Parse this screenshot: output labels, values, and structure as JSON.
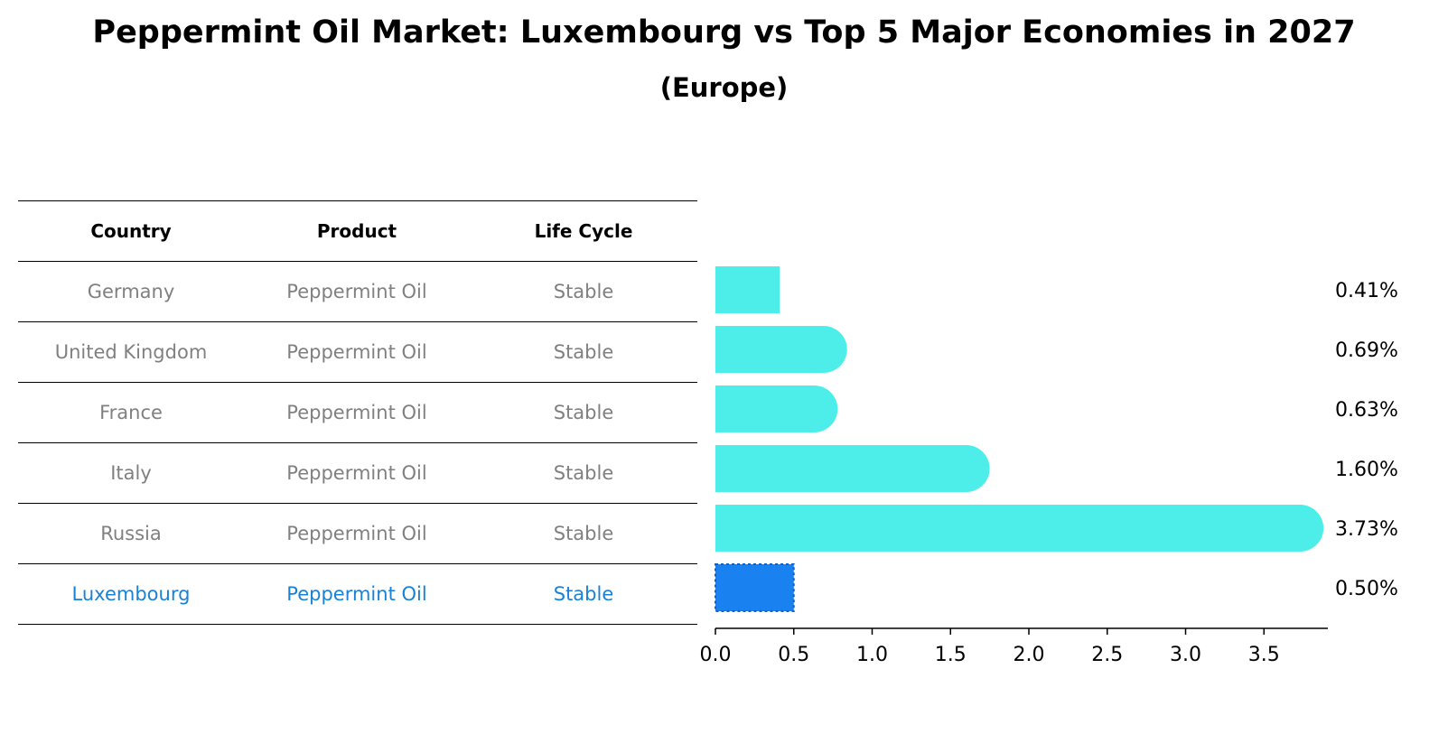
{
  "title": "Peppermint Oil Market: Luxembourg vs Top 5 Major Economies in 2027",
  "subtitle": "(Europe)",
  "table": {
    "headers": [
      "Country",
      "Product",
      "Life Cycle"
    ],
    "rows": [
      [
        "Germany",
        "Peppermint Oil",
        "Stable"
      ],
      [
        "United Kingdom",
        "Peppermint Oil",
        "Stable"
      ],
      [
        "France",
        "Peppermint Oil",
        "Stable"
      ],
      [
        "Italy",
        "Peppermint Oil",
        "Stable"
      ],
      [
        "Russia",
        "Peppermint Oil",
        "Stable"
      ],
      [
        "Luxembourg",
        "Peppermint Oil",
        "Stable"
      ]
    ],
    "highlight_row": 5
  },
  "colors": {
    "bar": "#4deeea",
    "highlight": "#1a82f0",
    "table_text": "#808080",
    "highlight_text": "#1a82d6"
  },
  "chart_data": {
    "type": "bar",
    "orientation": "horizontal",
    "categories": [
      "Germany",
      "United Kingdom",
      "France",
      "Italy",
      "Russia",
      "Luxembourg"
    ],
    "values": [
      0.41,
      0.69,
      0.63,
      1.6,
      3.73,
      0.5
    ],
    "value_labels": [
      "0.41%",
      "0.69%",
      "0.63%",
      "1.60%",
      "3.73%",
      "0.50%"
    ],
    "highlight_index": 5,
    "xlim": [
      0,
      3.9
    ],
    "xticks": [
      0.0,
      0.5,
      1.0,
      1.5,
      2.0,
      2.5,
      3.0,
      3.5
    ],
    "xtick_labels": [
      "0.0",
      "0.5",
      "1.0",
      "1.5",
      "2.0",
      "2.5",
      "3.0",
      "3.5"
    ],
    "grid": false
  }
}
